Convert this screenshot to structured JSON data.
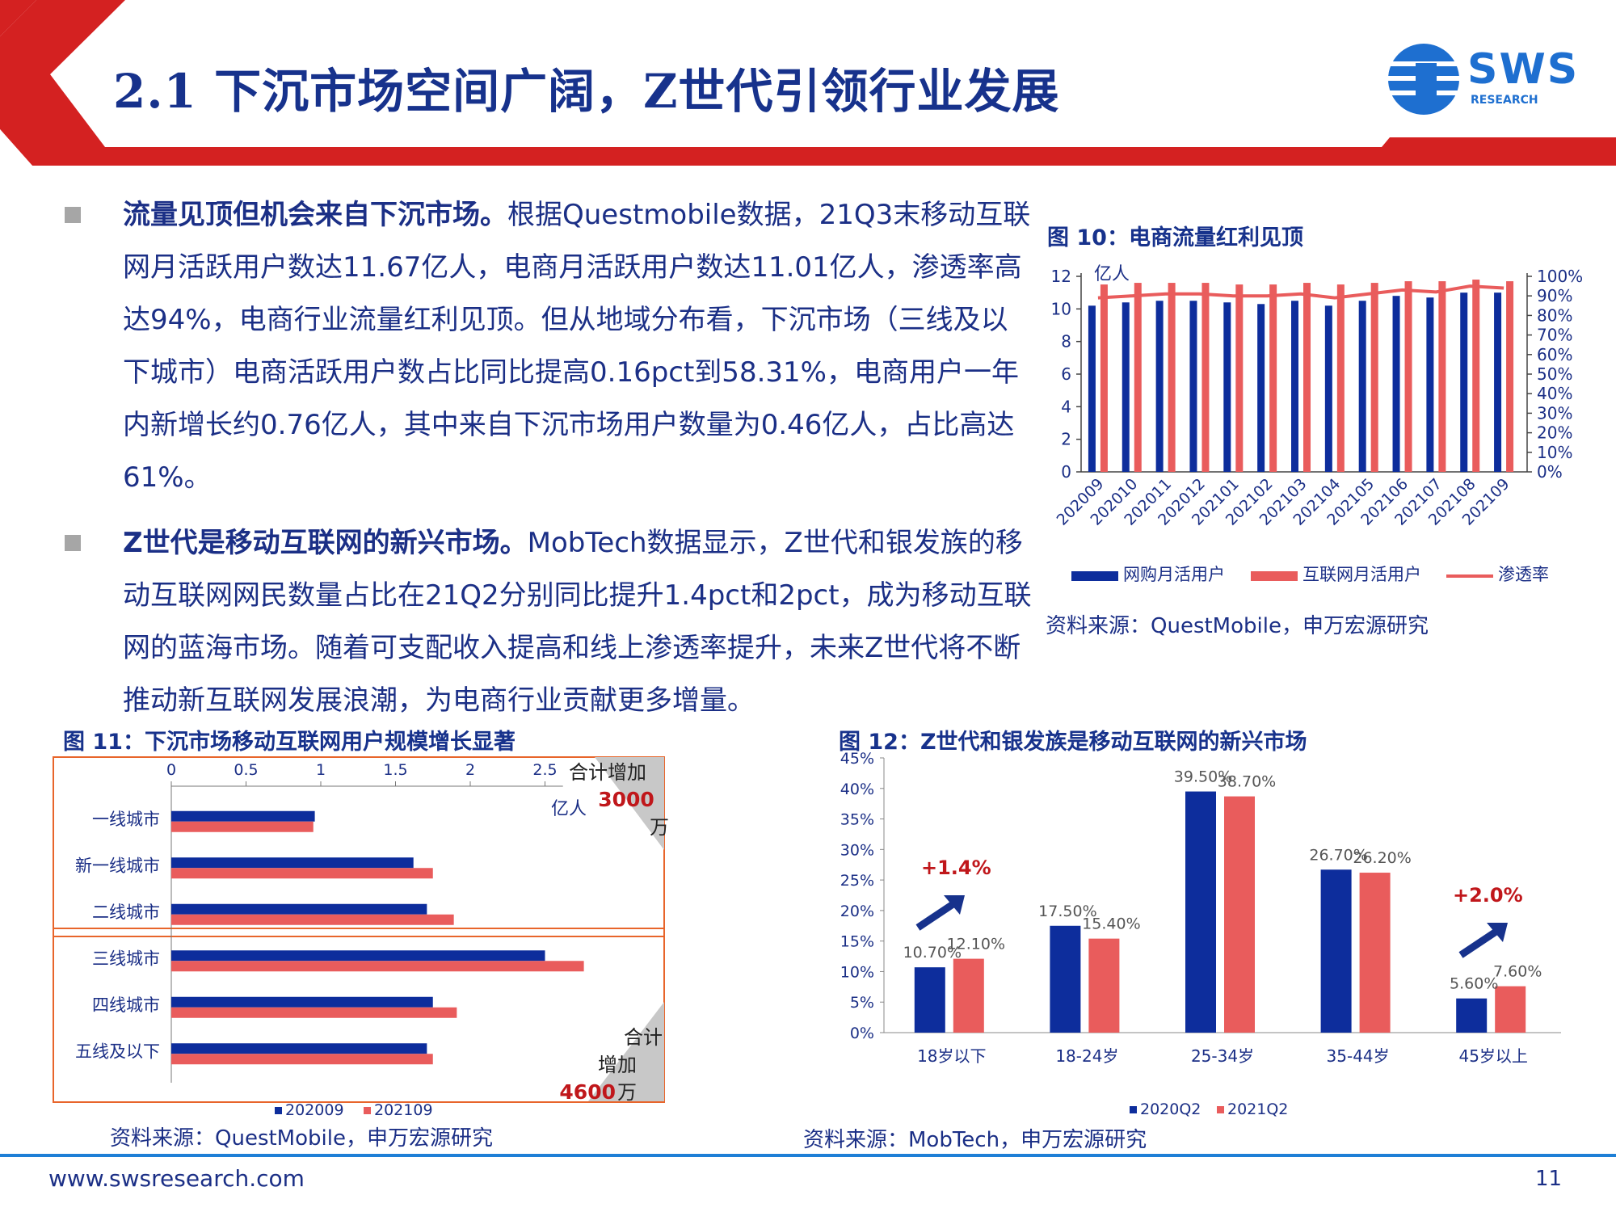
{
  "header": {
    "title": "2.1 下沉市场空间广阔，Z世代引领行业发展",
    "logo_text": "SWS",
    "logo_sub": "RESEARCH"
  },
  "body": {
    "p1_bold": "流量见顶但机会来自下沉市场。",
    "p1_text": "根据Questmobile数据，21Q3末移动互联网月活跃用户数达11.67亿人，电商月活跃用户数达11.01亿人，渗透率高达94%，电商行业流量红利见顶。但从地域分布看，下沉市场（三线及以下城市）电商活跃用户数占比同比提高0.16pct到58.31%，电商用户一年内新增长约0.76亿人，其中来自下沉市场用户数量为0.46亿人，占比高达61%。",
    "p2_bold": "Z世代是移动互联网的新兴市场。",
    "p2_text": "MobTech数据显示，Z世代和银发族的移动互联网网民数量占比在21Q2分别同比提升1.4pct和2pct，成为移动互联网的蓝海市场。随着可支配收入提高和线上渗透率提升，未来Z世代将不断推动新互联网发展浪潮，为电商行业贡献更多增量。"
  },
  "fig10": {
    "title": "图 10：电商流量红利见顶",
    "source": "资料来源：QuestMobile，申万宏源研究",
    "colors": {
      "blue": "#0d2d9c",
      "red": "#e95c5c"
    }
  },
  "fig11": {
    "title": "图 11：下沉市场移动互联网用户规模增长显著",
    "source": "资料来源：QuestMobile，申万宏源研究",
    "note_top_label": "合计增加",
    "note_top_value": "3000",
    "note_top_unit": "万",
    "note_bottom_label1": "合计",
    "note_bottom_label2": "增加",
    "note_bottom_value": "4600",
    "note_bottom_unit": "万"
  },
  "fig12": {
    "title": "图 12：Z世代和银发族是移动互联网的新兴市场",
    "source": "资料来源：MobTech，申万宏源研究",
    "annot1": "+1.4%",
    "annot2": "+2.0%"
  },
  "chart_data": [
    {
      "type": "bar",
      "categories": [
        "202009",
        "202010",
        "202011",
        "202012",
        "202101",
        "202102",
        "202103",
        "202104",
        "202105",
        "202106",
        "202107",
        "202108",
        "202109"
      ],
      "series": [
        {
          "name": "网购月活用户",
          "type": "bar",
          "axis": "left",
          "values": [
            10.2,
            10.4,
            10.5,
            10.5,
            10.4,
            10.3,
            10.5,
            10.2,
            10.5,
            10.8,
            10.7,
            11.0,
            11.0
          ]
        },
        {
          "name": "互联网月活用户",
          "type": "bar",
          "axis": "left",
          "values": [
            11.5,
            11.6,
            11.6,
            11.6,
            11.5,
            11.5,
            11.6,
            11.5,
            11.6,
            11.7,
            11.7,
            11.8,
            11.7
          ]
        },
        {
          "name": "渗透率",
          "type": "line",
          "axis": "right",
          "values": [
            0.89,
            0.9,
            0.91,
            0.91,
            0.9,
            0.9,
            0.91,
            0.89,
            0.91,
            0.93,
            0.92,
            0.95,
            0.94
          ]
        }
      ],
      "ylabel": "亿人",
      "ylim": [
        0,
        12
      ],
      "yticks": [
        0,
        2,
        4,
        6,
        8,
        10,
        12
      ],
      "y2lim": [
        0,
        1
      ],
      "y2ticks": [
        "0%",
        "10%",
        "20%",
        "30%",
        "40%",
        "50%",
        "60%",
        "70%",
        "80%",
        "90%",
        "100%"
      ],
      "legend": "bottom"
    },
    {
      "type": "bar",
      "orientation": "horizontal",
      "categories": [
        "一线城市",
        "新一线城市",
        "二线城市",
        "三线城市",
        "四线城市",
        "五线及以下"
      ],
      "series": [
        {
          "name": "202009",
          "values": [
            0.96,
            1.62,
            1.71,
            2.5,
            1.75,
            1.71
          ]
        },
        {
          "name": "202109",
          "values": [
            0.95,
            1.75,
            1.89,
            2.76,
            1.91,
            1.75
          ]
        }
      ],
      "xlim": [
        0,
        3
      ],
      "xticks": [
        "0",
        "0.5",
        "1",
        "1.5",
        "2",
        "2.5"
      ],
      "xlabel": "亿人",
      "legend": "bottom"
    },
    {
      "type": "bar",
      "categories": [
        "18岁以下",
        "18-24岁",
        "25-34岁",
        "35-44岁",
        "45岁以上"
      ],
      "series": [
        {
          "name": "2020Q2",
          "values": [
            10.7,
            17.5,
            39.5,
            26.7,
            5.6
          ],
          "labels": [
            "10.70%",
            "17.50%",
            "39.50%",
            "26.70%",
            "5.60%"
          ]
        },
        {
          "name": "2021Q2",
          "values": [
            12.1,
            15.4,
            38.7,
            26.2,
            7.6
          ],
          "labels": [
            "12.10%",
            "15.40%",
            "38.70%",
            "26.20%",
            "7.60%"
          ]
        }
      ],
      "ylim": [
        0,
        45
      ],
      "yticks": [
        "0%",
        "5%",
        "10%",
        "15%",
        "20%",
        "25%",
        "30%",
        "35%",
        "40%",
        "45%"
      ],
      "legend": "bottom"
    }
  ],
  "footer": {
    "url": "www.swsresearch.com",
    "page": "11"
  }
}
